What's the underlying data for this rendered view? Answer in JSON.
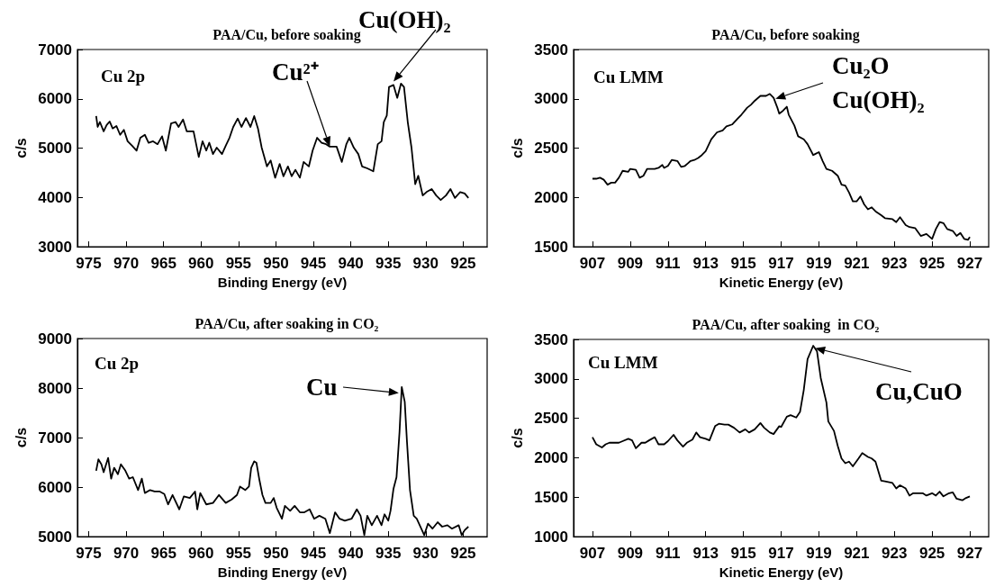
{
  "chart_data": [
    {
      "type": "line",
      "title": "PAA/Cu, before soaking",
      "xlabel": "Binding Energy (eV)",
      "ylabel": "c/s",
      "color": "#000000",
      "annotations": [
        "Cu 2p",
        {
          "text": "Cu²⁺",
          "x": 942.8,
          "y": 5030
        },
        {
          "text": "Cu(OH)₂",
          "x": 934.3,
          "y": 6350
        }
      ],
      "xlim": [
        976.5,
        921.8
      ],
      "xticks": [
        975,
        970,
        965,
        960,
        955,
        950,
        945,
        940,
        935,
        930,
        925
      ],
      "ylim": [
        3000,
        7000
      ],
      "yticks": [
        3000,
        4000,
        5000,
        6000,
        7000
      ],
      "x": [
        974.0,
        973.8,
        973.5,
        973.0,
        972.6,
        972.2,
        971.8,
        971.3,
        970.8,
        970.3,
        969.8,
        969.2,
        968.6,
        968.1,
        967.5,
        967.0,
        966.4,
        965.8,
        965.2,
        964.7,
        964.0,
        963.4,
        963.0,
        962.4,
        961.9,
        961.0,
        960.3,
        959.8,
        959.3,
        958.9,
        958.4,
        957.9,
        957.2,
        956.7,
        956.2,
        955.7,
        955.1,
        954.6,
        954.0,
        953.4,
        952.9,
        952.4,
        951.9,
        951.2,
        950.7,
        950.1,
        949.5,
        949.0,
        948.4,
        947.9,
        947.4,
        946.8,
        946.3,
        945.6,
        945.1,
        944.5,
        943.9,
        943.3,
        942.8,
        941.9,
        941.2,
        940.6,
        940.2,
        939.6,
        939.0,
        938.5,
        937.8,
        937.0,
        936.4,
        935.9,
        935.6,
        935.2,
        934.9,
        934.3,
        933.8,
        933.3,
        932.9,
        932.4,
        931.9,
        931.4,
        931.0,
        930.4,
        929.9,
        929.2,
        928.6,
        928.0,
        927.3,
        926.7,
        926.1,
        925.4,
        924.8,
        924.3
      ],
      "values": [
        5650,
        5430,
        5530,
        5340,
        5470,
        5540,
        5400,
        5450,
        5270,
        5370,
        5140,
        5050,
        4950,
        5210,
        5270,
        5110,
        5140,
        5080,
        5240,
        4950,
        5500,
        5530,
        5430,
        5580,
        5340,
        5340,
        4820,
        5140,
        4950,
        5110,
        4880,
        5010,
        4880,
        5050,
        5210,
        5430,
        5600,
        5430,
        5610,
        5430,
        5650,
        5400,
        5010,
        4630,
        4750,
        4400,
        4680,
        4430,
        4630,
        4430,
        4560,
        4400,
        4720,
        4630,
        4950,
        5210,
        5110,
        5080,
        5030,
        5030,
        4720,
        5080,
        5210,
        5010,
        4880,
        4630,
        4590,
        4530,
        5080,
        5140,
        5530,
        5660,
        6240,
        6280,
        6020,
        6310,
        6240,
        5530,
        5010,
        4270,
        4440,
        4040,
        4110,
        4170,
        4040,
        3950,
        4040,
        4170,
        3990,
        4110,
        4080,
        3990
      ]
    },
    {
      "type": "line",
      "title": "PAA/Cu, before soaking",
      "xlabel": "Kinetic Energy (eV)",
      "ylabel": "c/s",
      "color": "#000000",
      "annotations": [
        "Cu LMM",
        {
          "text": "Cu₂O\nCu(OH)₂",
          "x": 916.7,
          "y": 3000
        }
      ],
      "xlim": [
        906,
        928
      ],
      "xticks": [
        907,
        909,
        911,
        913,
        915,
        917,
        919,
        921,
        923,
        925,
        927
      ],
      "ylim": [
        1500,
        3500
      ],
      "yticks": [
        1500,
        2000,
        2500,
        3000,
        3500
      ],
      "x": [
        907.0,
        907.2,
        907.4,
        907.6,
        907.8,
        908.0,
        908.2,
        908.4,
        908.6,
        908.9,
        909.0,
        909.3,
        909.5,
        909.7,
        909.9,
        910.3,
        910.5,
        910.7,
        910.8,
        911.0,
        911.2,
        911.5,
        911.7,
        911.9,
        912.2,
        912.4,
        912.6,
        912.8,
        913.0,
        913.3,
        913.6,
        913.9,
        914.1,
        914.4,
        914.7,
        914.9,
        915.2,
        915.4,
        915.6,
        915.9,
        916.2,
        916.4,
        916.6,
        916.8,
        916.9,
        917.1,
        917.3,
        917.4,
        917.7,
        917.9,
        918.2,
        918.4,
        918.7,
        918.8,
        919.0,
        919.2,
        919.4,
        919.7,
        920.0,
        920.2,
        920.4,
        920.6,
        920.8,
        921.0,
        921.2,
        921.4,
        921.6,
        921.8,
        922.0,
        922.3,
        922.5,
        922.9,
        923.1,
        923.3,
        923.6,
        923.8,
        924.1,
        924.4,
        924.7,
        925.0,
        925.2,
        925.4,
        925.6,
        925.8,
        926.1,
        926.3,
        926.5,
        926.7,
        926.9,
        927.0
      ],
      "values": [
        2190,
        2190,
        2200,
        2180,
        2130,
        2150,
        2150,
        2200,
        2270,
        2260,
        2290,
        2280,
        2200,
        2220,
        2290,
        2290,
        2300,
        2330,
        2300,
        2320,
        2380,
        2370,
        2310,
        2320,
        2370,
        2380,
        2400,
        2430,
        2470,
        2590,
        2660,
        2680,
        2720,
        2740,
        2800,
        2840,
        2910,
        2940,
        2980,
        3030,
        3030,
        3050,
        3010,
        2910,
        2850,
        2880,
        2920,
        2840,
        2730,
        2620,
        2590,
        2540,
        2430,
        2440,
        2460,
        2370,
        2290,
        2270,
        2220,
        2130,
        2120,
        2050,
        1960,
        1960,
        2010,
        1930,
        1880,
        1900,
        1860,
        1820,
        1790,
        1780,
        1750,
        1800,
        1720,
        1700,
        1690,
        1610,
        1630,
        1580,
        1680,
        1750,
        1740,
        1680,
        1660,
        1610,
        1640,
        1580,
        1570,
        1600
      ]
    },
    {
      "type": "line",
      "title": "PAA/Cu, after soaking in CO₂",
      "xlabel": "Binding Energy (eV)",
      "ylabel": "c/s",
      "color": "#000000",
      "annotations": [
        "Cu 2p",
        {
          "text": "Cu",
          "x": 933.6,
          "y": 7900
        }
      ],
      "xlim": [
        976.5,
        921.8
      ],
      "xticks": [
        975,
        970,
        965,
        960,
        955,
        950,
        945,
        940,
        935,
        930,
        925
      ],
      "ylim": [
        5000,
        9000
      ],
      "yticks": [
        5000,
        6000,
        7000,
        8000,
        9000
      ],
      "x": [
        974.0,
        973.7,
        973.3,
        973.0,
        972.4,
        972.0,
        971.6,
        971.1,
        970.7,
        970.1,
        969.6,
        969.1,
        968.4,
        967.9,
        967.5,
        966.8,
        966.2,
        965.5,
        964.9,
        964.4,
        963.8,
        962.9,
        962.3,
        961.5,
        960.8,
        960.5,
        960.1,
        959.3,
        958.4,
        957.6,
        956.7,
        955.9,
        955.2,
        954.8,
        954.1,
        953.6,
        953.3,
        952.9,
        952.6,
        952.2,
        951.8,
        951.4,
        950.7,
        950.3,
        949.9,
        949.2,
        948.8,
        948.1,
        947.5,
        946.8,
        946.2,
        945.5,
        944.9,
        944.2,
        943.4,
        942.8,
        942.1,
        941.5,
        940.8,
        939.9,
        939.2,
        938.7,
        938.2,
        937.8,
        937.2,
        936.5,
        935.9,
        935.5,
        935.0,
        934.7,
        934.3,
        933.9,
        933.5,
        933.2,
        932.8,
        932.5,
        932.1,
        931.6,
        931.2,
        930.8,
        930.2,
        929.7,
        929.1,
        928.4,
        927.8,
        927.1,
        926.5,
        925.6,
        925.2,
        924.8,
        924.3
      ],
      "values": [
        6330,
        6560,
        6460,
        6300,
        6590,
        6170,
        6390,
        6260,
        6460,
        6330,
        6170,
        6200,
        5940,
        6170,
        5880,
        5940,
        5910,
        5910,
        5860,
        5650,
        5840,
        5550,
        5810,
        5780,
        5910,
        5550,
        5880,
        5650,
        5680,
        5840,
        5680,
        5750,
        5840,
        6010,
        5940,
        6010,
        6390,
        6520,
        6490,
        6140,
        5840,
        5680,
        5680,
        5780,
        5580,
        5360,
        5620,
        5520,
        5620,
        5490,
        5490,
        5550,
        5360,
        5420,
        5360,
        5070,
        5490,
        5360,
        5320,
        5360,
        5550,
        5420,
        5030,
        5420,
        5230,
        5420,
        5230,
        5450,
        5320,
        5520,
        5970,
        6200,
        7110,
        8020,
        7720,
        6910,
        5940,
        5420,
        5360,
        5230,
        5030,
        5260,
        5160,
        5290,
        5200,
        5230,
        5160,
        5230,
        5030,
        5130,
        5200
      ]
    },
    {
      "type": "line",
      "title": "PAA/Cu, after soaking  in CO₂",
      "xlabel": "Kinetic Energy (eV)",
      "ylabel": "c/s",
      "color": "#000000",
      "annotations": [
        "Cu LMM",
        {
          "text": "Cu,CuO",
          "x": 918.8,
          "y": 3390
        }
      ],
      "xlim": [
        906,
        928
      ],
      "xticks": [
        907,
        909,
        911,
        913,
        915,
        917,
        919,
        921,
        923,
        925,
        927
      ],
      "ylim": [
        1000,
        3500
      ],
      "yticks": [
        1000,
        1500,
        2000,
        2500,
        3000,
        3500
      ],
      "x": [
        907.0,
        907.2,
        907.5,
        907.7,
        907.9,
        908.4,
        908.6,
        908.9,
        909.1,
        909.3,
        909.6,
        909.8,
        910.0,
        910.3,
        910.5,
        910.8,
        911.0,
        911.3,
        911.5,
        911.8,
        912.0,
        912.3,
        912.5,
        912.7,
        913.0,
        913.2,
        913.3,
        913.5,
        913.7,
        914.0,
        914.2,
        914.5,
        914.8,
        915.1,
        915.3,
        915.6,
        915.9,
        916.1,
        916.4,
        916.6,
        916.9,
        917.0,
        917.3,
        917.5,
        917.8,
        918.0,
        918.2,
        918.4,
        918.7,
        918.9,
        919.1,
        919.4,
        919.5,
        919.8,
        920.0,
        920.2,
        920.4,
        920.6,
        920.8,
        921.1,
        921.3,
        921.6,
        921.8,
        922.0,
        922.3,
        922.5,
        922.9,
        923.1,
        923.3,
        923.6,
        923.8,
        924.0,
        924.5,
        924.7,
        925.0,
        925.2,
        925.4,
        925.6,
        925.9,
        926.1,
        926.3,
        926.6,
        926.8,
        927.0
      ],
      "values": [
        2260,
        2170,
        2130,
        2170,
        2190,
        2190,
        2210,
        2240,
        2220,
        2120,
        2190,
        2190,
        2220,
        2260,
        2170,
        2170,
        2210,
        2290,
        2220,
        2140,
        2190,
        2230,
        2320,
        2260,
        2240,
        2220,
        2280,
        2400,
        2430,
        2420,
        2420,
        2380,
        2320,
        2360,
        2320,
        2360,
        2440,
        2380,
        2320,
        2300,
        2400,
        2390,
        2520,
        2540,
        2510,
        2580,
        2860,
        3250,
        3420,
        3350,
        3010,
        2700,
        2460,
        2340,
        2150,
        1990,
        1930,
        1950,
        1890,
        1990,
        2060,
        2010,
        1990,
        1950,
        1710,
        1700,
        1680,
        1610,
        1650,
        1610,
        1520,
        1550,
        1550,
        1520,
        1550,
        1520,
        1570,
        1510,
        1550,
        1560,
        1480,
        1460,
        1490,
        1510
      ]
    }
  ]
}
